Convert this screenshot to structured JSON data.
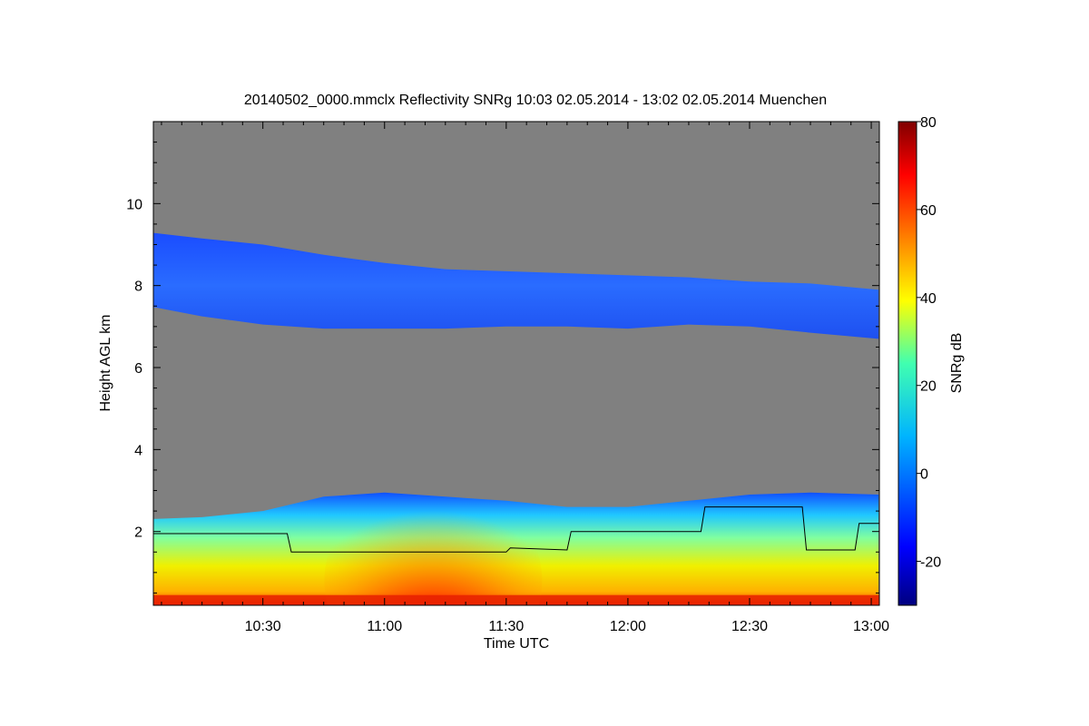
{
  "chart_data": {
    "type": "heatmap",
    "title": "20140502_0000.mmclx Reflectivity SNRg   10:03 02.05.2014 - 13:02 02.05.2014 Muenchen",
    "xlabel": "Time UTC",
    "ylabel": "Height AGL km",
    "colorbar_label": "SNRg dB",
    "x_range": [
      "10:03",
      "13:02"
    ],
    "y_range": [
      0.2,
      12.0
    ],
    "x_ticks": [
      "10:30",
      "11:00",
      "11:30",
      "12:00",
      "12:30",
      "13:00"
    ],
    "y_ticks": [
      2,
      4,
      6,
      8,
      10
    ],
    "colorbar_range": [
      -30,
      80
    ],
    "colorbar_ticks": [
      -20,
      0,
      20,
      40,
      60,
      80
    ],
    "background_color": "#808080",
    "colormap": "jet",
    "layers": [
      {
        "name": "",
        "snr_db": -18,
        "top_km": [
          [
            10.03,
            9.3
          ],
          [
            10.25,
            9.15
          ],
          [
            10.5,
            9.0
          ],
          [
            10.75,
            8.75
          ],
          [
            11.0,
            8.55
          ],
          [
            11.25,
            8.4
          ],
          [
            11.5,
            8.35
          ],
          [
            11.75,
            8.3
          ],
          [
            12.0,
            8.25
          ],
          [
            12.25,
            8.2
          ],
          [
            12.5,
            8.1
          ],
          [
            12.75,
            8.05
          ],
          [
            13.03,
            7.9
          ]
        ],
        "bottom_km": [
          [
            10.03,
            7.5
          ],
          [
            10.25,
            7.25
          ],
          [
            10.5,
            7.05
          ],
          [
            10.75,
            6.95
          ],
          [
            11.0,
            6.95
          ],
          [
            11.25,
            6.95
          ],
          [
            11.5,
            7.0
          ],
          [
            11.75,
            7.0
          ],
          [
            12.0,
            6.95
          ],
          [
            12.25,
            7.05
          ],
          [
            12.5,
            7.0
          ],
          [
            12.75,
            6.85
          ],
          [
            13.03,
            6.7
          ]
        ]
      },
      {
        "name": "",
        "snr_db": 20,
        "top_km": [
          [
            10.03,
            2.3
          ],
          [
            10.25,
            2.35
          ],
          [
            10.5,
            2.5
          ],
          [
            10.75,
            2.85
          ],
          [
            11.0,
            2.95
          ],
          [
            11.25,
            2.85
          ],
          [
            11.5,
            2.75
          ],
          [
            11.75,
            2.6
          ],
          [
            12.0,
            2.6
          ],
          [
            12.25,
            2.75
          ],
          [
            12.5,
            2.9
          ],
          [
            12.75,
            2.95
          ],
          [
            13.03,
            2.9
          ]
        ],
        "bottom_km": [
          [
            10.03,
            0.2
          ],
          [
            13.03,
            0.2
          ]
        ]
      }
    ],
    "convective_core": {
      "snr_db": 60,
      "x_center": "11:12",
      "top_km": 2.2
    },
    "surface_band": {
      "snr_db": 65,
      "top_km": 0.45
    },
    "cloud_base_line": {
      "color": "#000000",
      "x": [
        "10:03",
        "10:36",
        "10:37",
        "11:30",
        "11:31",
        "11:45",
        "11:46",
        "12:18",
        "12:19",
        "12:43",
        "12:44",
        "12:56",
        "12:57",
        "13:03"
      ],
      "y": [
        1.95,
        1.95,
        1.5,
        1.5,
        1.6,
        1.55,
        2.0,
        2.0,
        2.6,
        2.6,
        1.55,
        1.55,
        2.2,
        2.2
      ]
    }
  }
}
